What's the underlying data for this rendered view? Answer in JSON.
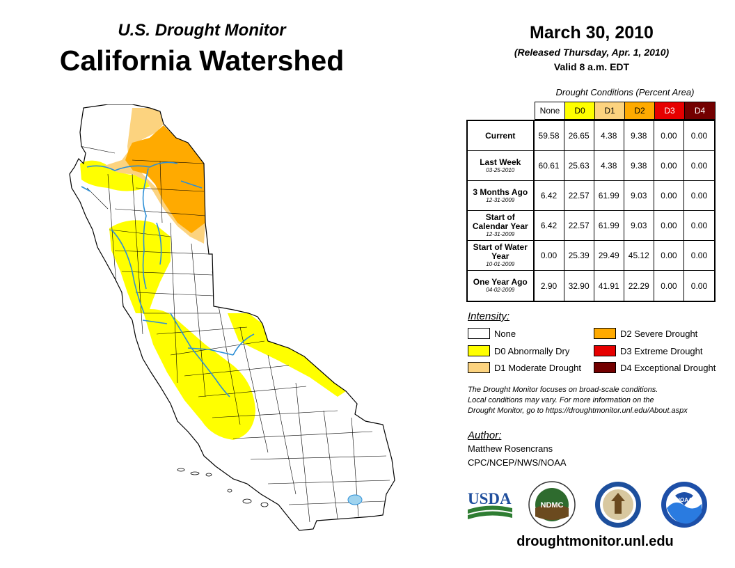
{
  "header": {
    "subtitle": "U.S. Drought Monitor",
    "title": "California Watershed"
  },
  "release": {
    "date": "March 30, 2010",
    "released": "(Released Thursday, Apr. 1, 2010)",
    "valid": "Valid 8 a.m. EDT"
  },
  "table": {
    "caption": "Drought Conditions (Percent Area)",
    "columns": [
      "None",
      "D0",
      "D1",
      "D2",
      "D3",
      "D4"
    ],
    "column_colors": [
      "#ffffff",
      "#ffff00",
      "#fcd37f",
      "#ffaa00",
      "#e60000",
      "#730000"
    ],
    "rows": [
      {
        "label": "Current",
        "date": "",
        "values": [
          "59.58",
          "26.65",
          "4.38",
          "9.38",
          "0.00",
          "0.00"
        ]
      },
      {
        "label": "Last Week",
        "date": "03-25-2010",
        "values": [
          "60.61",
          "25.63",
          "4.38",
          "9.38",
          "0.00",
          "0.00"
        ]
      },
      {
        "label": "3 Months Ago",
        "date": "12-31-2009",
        "values": [
          "6.42",
          "22.57",
          "61.99",
          "9.03",
          "0.00",
          "0.00"
        ]
      },
      {
        "label": "Start of Calendar Year",
        "date": "12-31-2009",
        "values": [
          "6.42",
          "22.57",
          "61.99",
          "9.03",
          "0.00",
          "0.00"
        ]
      },
      {
        "label": "Start of Water Year",
        "date": "10-01-2009",
        "values": [
          "0.00",
          "25.39",
          "29.49",
          "45.12",
          "0.00",
          "0.00"
        ]
      },
      {
        "label": "One Year Ago",
        "date": "04-02-2009",
        "values": [
          "2.90",
          "32.90",
          "41.91",
          "22.29",
          "0.00",
          "0.00"
        ]
      }
    ]
  },
  "legend": {
    "title": "Intensity:",
    "items": [
      {
        "label": "None",
        "color": "#ffffff"
      },
      {
        "label": "D0 Abnormally Dry",
        "color": "#ffff00"
      },
      {
        "label": "D1 Moderate Drought",
        "color": "#fcd37f"
      },
      {
        "label": "D2 Severe Drought",
        "color": "#ffaa00"
      },
      {
        "label": "D3 Extreme Drought",
        "color": "#e60000"
      },
      {
        "label": "D4 Exceptional Drought",
        "color": "#730000"
      }
    ]
  },
  "note": {
    "line1": "The Drought Monitor focuses on broad-scale conditions.",
    "line2": "Local conditions may vary. For more information on the",
    "line3": "Drought Monitor, go to https://droughtmonitor.unl.edu/About.aspx"
  },
  "author": {
    "title": "Author:",
    "name": "Matthew Rosencrans",
    "org": "CPC/NCEP/NWS/NOAA"
  },
  "logos": {
    "usda": "USDA",
    "ndmc": "NDMC",
    "noaa": "NOAA"
  },
  "website": "droughtmonitor.unl.edu"
}
